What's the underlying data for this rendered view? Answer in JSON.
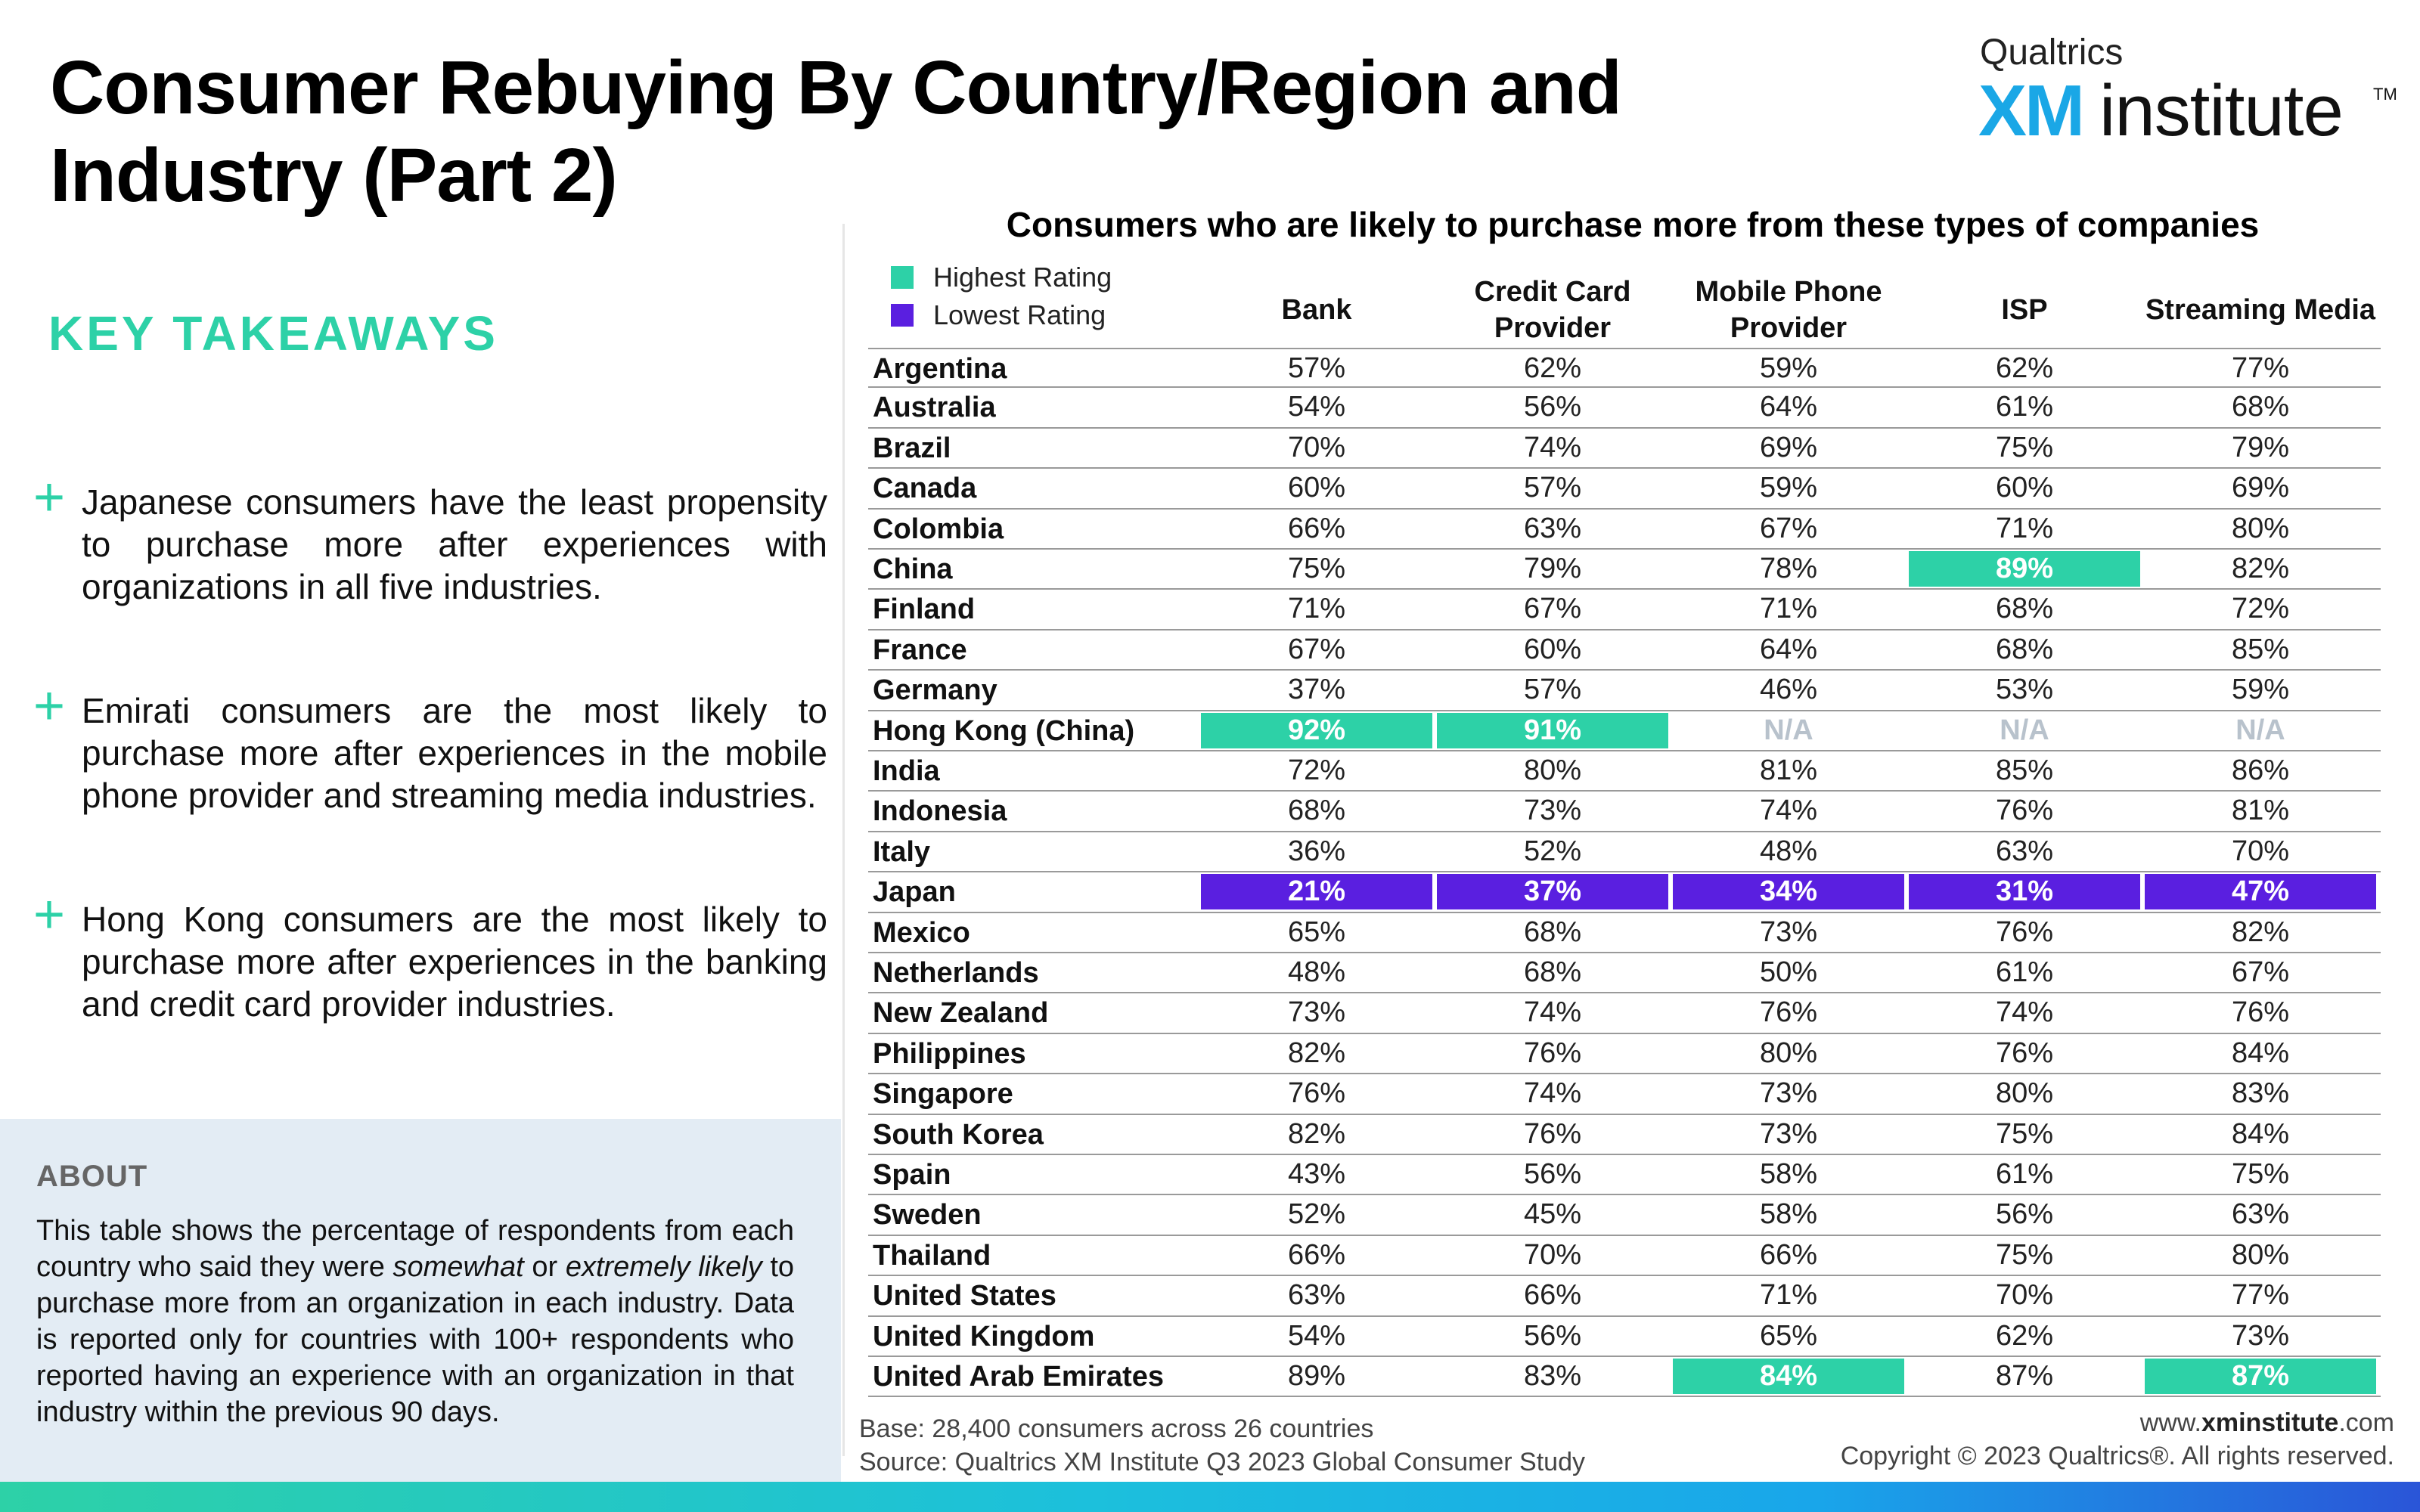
{
  "page": {
    "title_line1": "Consumer Rebuying By Country/Region and",
    "title_line2": "Industry (Part 2)"
  },
  "logo": {
    "top": "Qualtrics",
    "xm": "XM",
    "institute": "institute",
    "tm": "TM"
  },
  "takeaways": {
    "title": "KEY TAKEAWAYS",
    "items": [
      "Japanese consumers have the least propensity to purchase more after experiences with organizations in all five industries.",
      "Emirati consumers are the most likely to purchase more after experiences in the mobile phone provider and streaming media industries.",
      "Hong Kong consumers are the most likely to purchase more after experiences in the banking and credit card provider industries."
    ]
  },
  "about": {
    "title": "ABOUT",
    "text_part1": "This table shows the percentage of respondents from each country who said they were ",
    "italic1": "somewhat",
    "text_part2": " or ",
    "italic2": "extremely likely",
    "text_part3": " to purchase more from an organization in each industry. Data is reported only for countries with 100+ respondents who reported having an experience with an organization in that industry within the previous 90 days."
  },
  "footer": {
    "base": "Base: 28,400 consumers across 26 countries",
    "source": "Source: Qualtrics XM Institute Q3 2023 Global Consumer Study",
    "website_prefix": "www.",
    "website_bold": "xminstitute",
    "website_suffix": ".com",
    "copyright": "Copyright © 2023 Qualtrics®. All rights reserved."
  },
  "colors": {
    "highest": "#2dd1a7",
    "lowest": "#5a1fe0",
    "na": "#b8c2cc",
    "accent": "#2dd1a7"
  },
  "chart_data": {
    "type": "table",
    "title": "Consumers who are likely to purchase more from these types of companies",
    "legend": [
      {
        "label": "Highest Rating",
        "color": "#2dd1a7"
      },
      {
        "label": "Lowest Rating",
        "color": "#5a1fe0"
      }
    ],
    "columns": [
      "Bank",
      "Credit Card Provider",
      "Mobile Phone Provider",
      "ISP",
      "Streaming Media"
    ],
    "rows": [
      {
        "country": "Argentina",
        "values": [
          "57%",
          "62%",
          "59%",
          "62%",
          "77%"
        ],
        "highlight": [
          "",
          "",
          "",
          "",
          ""
        ]
      },
      {
        "country": "Australia",
        "values": [
          "54%",
          "56%",
          "64%",
          "61%",
          "68%"
        ],
        "highlight": [
          "",
          "",
          "",
          "",
          ""
        ]
      },
      {
        "country": "Brazil",
        "values": [
          "70%",
          "74%",
          "69%",
          "75%",
          "79%"
        ],
        "highlight": [
          "",
          "",
          "",
          "",
          ""
        ]
      },
      {
        "country": "Canada",
        "values": [
          "60%",
          "57%",
          "59%",
          "60%",
          "69%"
        ],
        "highlight": [
          "",
          "",
          "",
          "",
          ""
        ]
      },
      {
        "country": "Colombia",
        "values": [
          "66%",
          "63%",
          "67%",
          "71%",
          "80%"
        ],
        "highlight": [
          "",
          "",
          "",
          "",
          ""
        ]
      },
      {
        "country": "China",
        "values": [
          "75%",
          "79%",
          "78%",
          "89%",
          "82%"
        ],
        "highlight": [
          "",
          "",
          "",
          "high",
          ""
        ]
      },
      {
        "country": "Finland",
        "values": [
          "71%",
          "67%",
          "71%",
          "68%",
          "72%"
        ],
        "highlight": [
          "",
          "",
          "",
          "",
          ""
        ]
      },
      {
        "country": "France",
        "values": [
          "67%",
          "60%",
          "64%",
          "68%",
          "85%"
        ],
        "highlight": [
          "",
          "",
          "",
          "",
          ""
        ]
      },
      {
        "country": "Germany",
        "values": [
          "37%",
          "57%",
          "46%",
          "53%",
          "59%"
        ],
        "highlight": [
          "",
          "",
          "",
          "",
          ""
        ]
      },
      {
        "country": "Hong Kong (China)",
        "values": [
          "92%",
          "91%",
          "N/A",
          "N/A",
          "N/A"
        ],
        "highlight": [
          "high",
          "high",
          "na",
          "na",
          "na"
        ]
      },
      {
        "country": "India",
        "values": [
          "72%",
          "80%",
          "81%",
          "85%",
          "86%"
        ],
        "highlight": [
          "",
          "",
          "",
          "",
          ""
        ]
      },
      {
        "country": "Indonesia",
        "values": [
          "68%",
          "73%",
          "74%",
          "76%",
          "81%"
        ],
        "highlight": [
          "",
          "",
          "",
          "",
          ""
        ]
      },
      {
        "country": "Italy",
        "values": [
          "36%",
          "52%",
          "48%",
          "63%",
          "70%"
        ],
        "highlight": [
          "",
          "",
          "",
          "",
          ""
        ]
      },
      {
        "country": "Japan",
        "values": [
          "21%",
          "37%",
          "34%",
          "31%",
          "47%"
        ],
        "highlight": [
          "low",
          "low",
          "low",
          "low",
          "low"
        ]
      },
      {
        "country": "Mexico",
        "values": [
          "65%",
          "68%",
          "73%",
          "76%",
          "82%"
        ],
        "highlight": [
          "",
          "",
          "",
          "",
          ""
        ]
      },
      {
        "country": "Netherlands",
        "values": [
          "48%",
          "68%",
          "50%",
          "61%",
          "67%"
        ],
        "highlight": [
          "",
          "",
          "",
          "",
          ""
        ]
      },
      {
        "country": "New Zealand",
        "values": [
          "73%",
          "74%",
          "76%",
          "74%",
          "76%"
        ],
        "highlight": [
          "",
          "",
          "",
          "",
          ""
        ]
      },
      {
        "country": "Philippines",
        "values": [
          "82%",
          "76%",
          "80%",
          "76%",
          "84%"
        ],
        "highlight": [
          "",
          "",
          "",
          "",
          ""
        ]
      },
      {
        "country": "Singapore",
        "values": [
          "76%",
          "74%",
          "73%",
          "80%",
          "83%"
        ],
        "highlight": [
          "",
          "",
          "",
          "",
          ""
        ]
      },
      {
        "country": "South Korea",
        "values": [
          "82%",
          "76%",
          "73%",
          "75%",
          "84%"
        ],
        "highlight": [
          "",
          "",
          "",
          "",
          ""
        ]
      },
      {
        "country": "Spain",
        "values": [
          "43%",
          "56%",
          "58%",
          "61%",
          "75%"
        ],
        "highlight": [
          "",
          "",
          "",
          "",
          ""
        ]
      },
      {
        "country": "Sweden",
        "values": [
          "52%",
          "45%",
          "58%",
          "56%",
          "63%"
        ],
        "highlight": [
          "",
          "",
          "",
          "",
          ""
        ]
      },
      {
        "country": "Thailand",
        "values": [
          "66%",
          "70%",
          "66%",
          "75%",
          "80%"
        ],
        "highlight": [
          "",
          "",
          "",
          "",
          ""
        ]
      },
      {
        "country": "United States",
        "values": [
          "63%",
          "66%",
          "71%",
          "70%",
          "77%"
        ],
        "highlight": [
          "",
          "",
          "",
          "",
          ""
        ]
      },
      {
        "country": "United Kingdom",
        "values": [
          "54%",
          "56%",
          "65%",
          "62%",
          "73%"
        ],
        "highlight": [
          "",
          "",
          "",
          "",
          ""
        ]
      },
      {
        "country": "United Arab Emirates",
        "values": [
          "89%",
          "83%",
          "84%",
          "87%",
          "87%"
        ],
        "highlight": [
          "",
          "",
          "high",
          "",
          "high"
        ]
      }
    ]
  }
}
